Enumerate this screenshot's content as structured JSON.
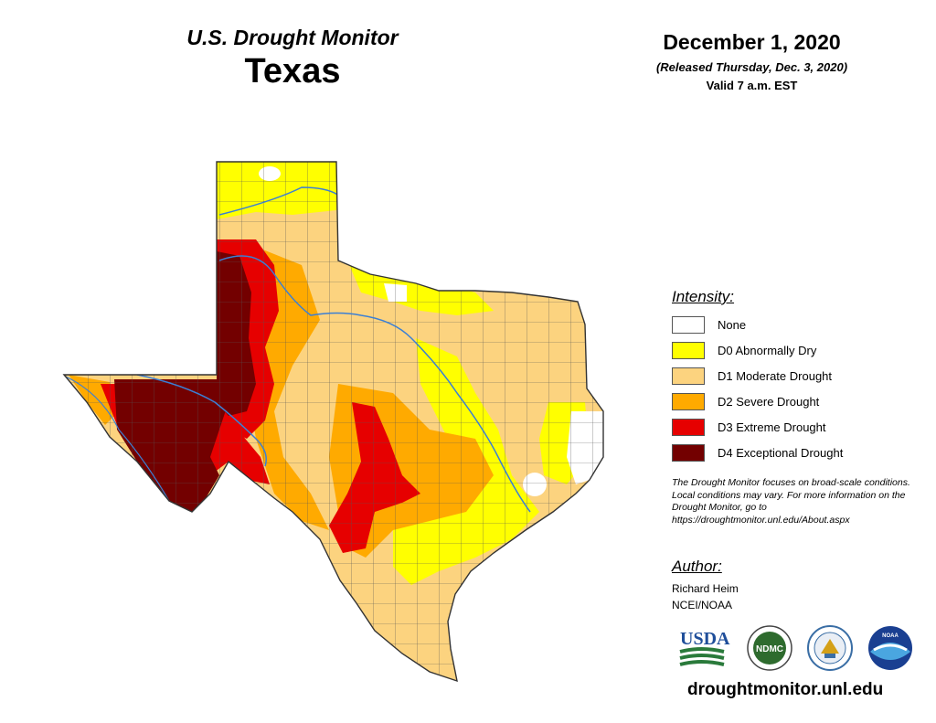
{
  "header": {
    "monitor_title": "U.S. Drought Monitor",
    "state": "Texas",
    "date": "December 1, 2020",
    "released": "(Released Thursday, Dec. 3, 2020)",
    "valid": "Valid 7 a.m. EST"
  },
  "legend": {
    "title": "Intensity:",
    "items": [
      {
        "label": "None",
        "color": "#ffffff"
      },
      {
        "label": "D0 Abnormally Dry",
        "color": "#ffff00"
      },
      {
        "label": "D1 Moderate Drought",
        "color": "#fcd37f"
      },
      {
        "label": "D2 Severe Drought",
        "color": "#ffaa00"
      },
      {
        "label": "D3 Extreme Drought",
        "color": "#e60000"
      },
      {
        "label": "D4 Exceptional Drought",
        "color": "#730000"
      }
    ]
  },
  "disclaimer": "The Drought Monitor focuses on broad-scale conditions. Local conditions may vary. For more information on the Drought Monitor, go to https://droughtmonitor.unl.edu/About.aspx",
  "author": {
    "title": "Author:",
    "name": "Richard Heim",
    "org": "NCEI/NOAA"
  },
  "logos": {
    "usda": "USDA",
    "ndmc": "NDMC",
    "noaa": "NOAA"
  },
  "website": "droughtmonitor.unl.edu",
  "colors": {
    "river": "#3b7fd4",
    "county_line": "#555555",
    "state_outline": "#333333"
  }
}
